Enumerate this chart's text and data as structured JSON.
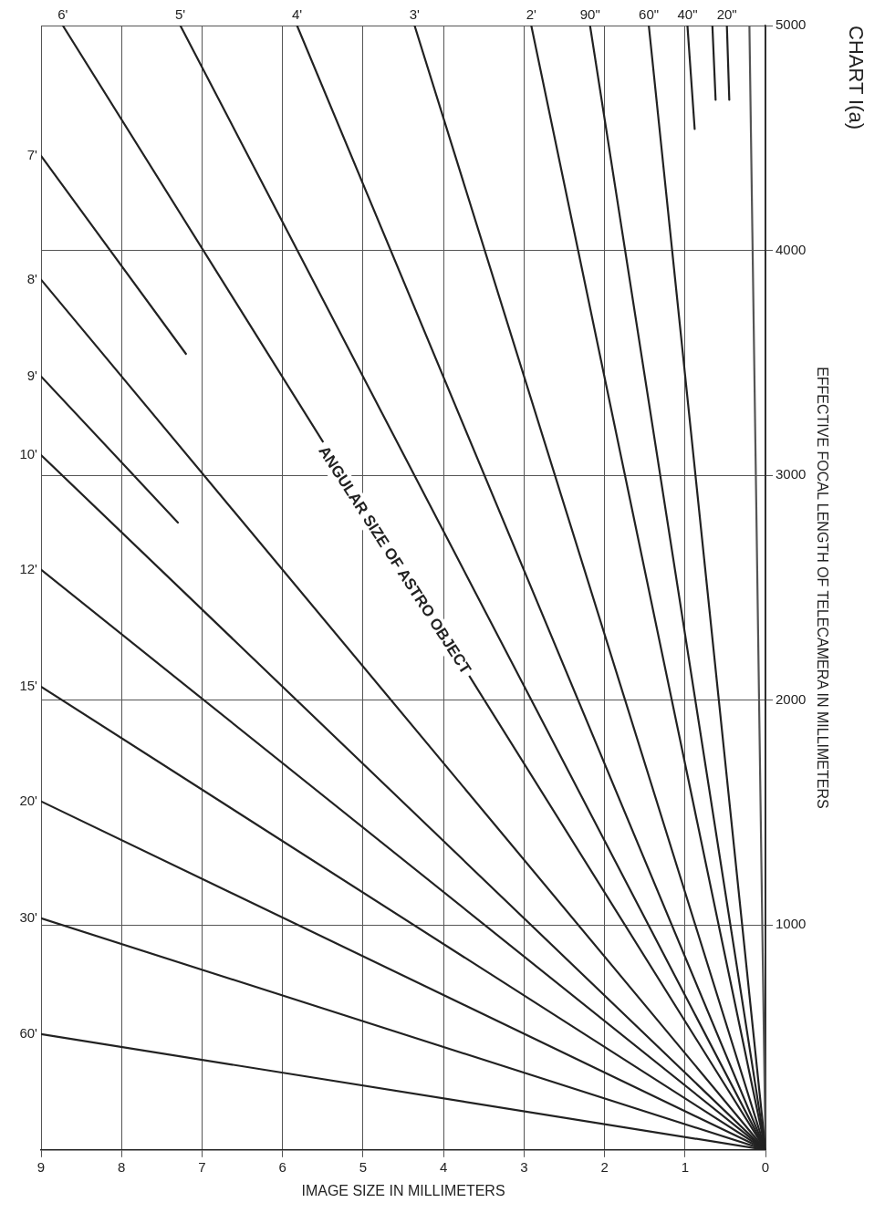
{
  "chart_data": {
    "type": "line",
    "title": "CHART I(a)",
    "xlabel": "IMAGE SIZE IN MILLIMETERS",
    "ylabel": "EFFECTIVE FOCAL LENGTH OF TELECAMERA IN MILLIMETERS",
    "annotations": [
      "ANGULAR SIZE OF ASTRO OBJECT"
    ],
    "xlim": [
      9,
      0
    ],
    "xticks": [
      0,
      1,
      2,
      3,
      4,
      5,
      6,
      7,
      8,
      9
    ],
    "ylim": [
      0,
      5000
    ],
    "yticks": [
      1000,
      2000,
      3000,
      4000,
      5000
    ],
    "grid": true,
    "legend": false,
    "marker": "none",
    "line_style": "solid",
    "series": [
      {
        "name": "60'",
        "color": "#222222",
        "x": [
          0,
          9
        ],
        "values": [
          0,
          515
        ]
      },
      {
        "name": "30'",
        "color": "#222222",
        "x": [
          0,
          9
        ],
        "values": [
          0,
          1030
        ]
      },
      {
        "name": "20'",
        "color": "#222222",
        "x": [
          0,
          9
        ],
        "values": [
          0,
          1550
        ]
      },
      {
        "name": "15'",
        "color": "#222222",
        "x": [
          0,
          9
        ],
        "values": [
          0,
          2060
        ]
      },
      {
        "name": "12'",
        "color": "#222222",
        "x": [
          0,
          9
        ],
        "values": [
          0,
          2580
        ]
      },
      {
        "name": "10'",
        "color": "#222222",
        "x": [
          0,
          9
        ],
        "values": [
          0,
          3090
        ]
      },
      {
        "name": "9'",
        "color": "#222222",
        "x": [
          7.3,
          9
        ],
        "values": [
          2790,
          3440
        ]
      },
      {
        "name": "8'",
        "color": "#222222",
        "x": [
          0,
          9
        ],
        "values": [
          0,
          3870
        ]
      },
      {
        "name": "7'",
        "color": "#222222",
        "x": [
          7.2,
          9
        ],
        "values": [
          3540,
          4420
        ]
      },
      {
        "name": "6'",
        "color": "#222222",
        "x": [
          0,
          8.73
        ],
        "values": [
          0,
          5000
        ]
      },
      {
        "name": "5'",
        "color": "#222222",
        "x": [
          0,
          7.27
        ],
        "values": [
          0,
          5000
        ]
      },
      {
        "name": "4'",
        "color": "#222222",
        "x": [
          0,
          5.82
        ],
        "values": [
          0,
          5000
        ]
      },
      {
        "name": "3'",
        "color": "#222222",
        "x": [
          0,
          4.36
        ],
        "values": [
          0,
          5000
        ]
      },
      {
        "name": "2'",
        "color": "#222222",
        "x": [
          0,
          2.91
        ],
        "values": [
          0,
          5000
        ]
      },
      {
        "name": "90\"",
        "color": "#222222",
        "x": [
          0,
          2.18
        ],
        "values": [
          0,
          5000
        ]
      },
      {
        "name": "60\"",
        "color": "#222222",
        "x": [
          0,
          1.45
        ],
        "values": [
          0,
          5000
        ]
      },
      {
        "name": "40\"",
        "color": "#222222",
        "x": [
          0.88,
          0.97
        ],
        "values": [
          4540,
          5000
        ]
      },
      {
        "color": "#222222",
        "x": [
          0.62,
          0.66
        ],
        "values": [
          4670,
          5000
        ]
      },
      {
        "name": "20\"",
        "color": "#222222",
        "x": [
          0.45,
          0.48
        ],
        "values": [
          4670,
          5000
        ]
      },
      {
        "color": "#555555",
        "x": [
          0,
          0.2
        ],
        "values": [
          0,
          5000
        ]
      }
    ]
  }
}
